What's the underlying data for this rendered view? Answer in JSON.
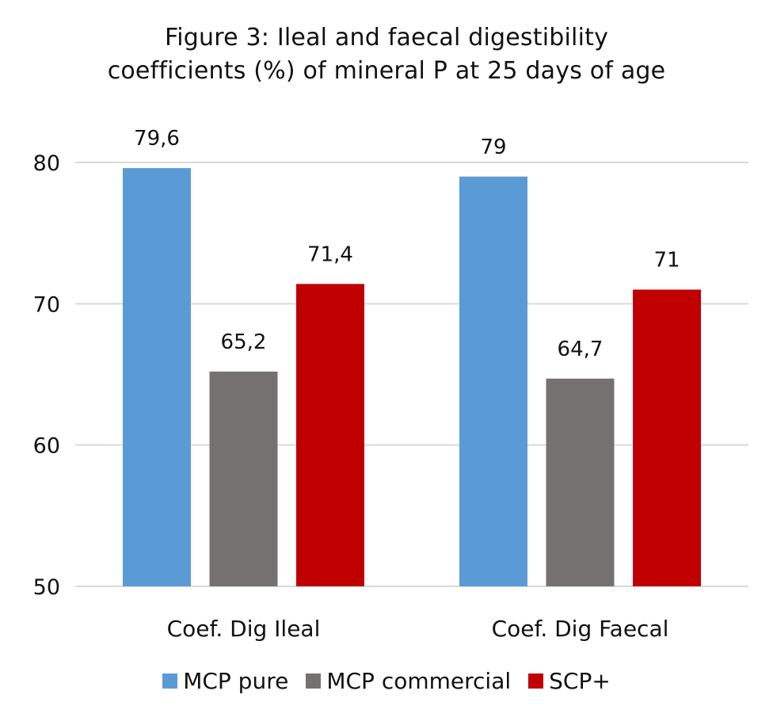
{
  "chart_data": {
    "type": "bar",
    "title": "Figure 3: Ileal and faecal digestibility coefficients (%) of mineral P at 25 days of age",
    "title_lines": [
      "Figure 3: Ileal and faecal digestibility",
      "coefficients (%) of mineral P at 25 days of age"
    ],
    "categories": [
      "Coef. Dig Ileal",
      "Coef. Dig Faecal"
    ],
    "series": [
      {
        "name": "MCP pure",
        "color": "#5B9BD5",
        "values": [
          79.6,
          79
        ],
        "labels": [
          "79,6",
          "79"
        ]
      },
      {
        "name": "MCP commercial",
        "color": "#767171",
        "values": [
          65.2,
          64.7
        ],
        "labels": [
          "65,2",
          "64,7"
        ]
      },
      {
        "name": "SCP+",
        "color": "#C00000",
        "values": [
          71.4,
          71
        ],
        "labels": [
          "71,4",
          "71"
        ]
      }
    ],
    "xlabel": "",
    "ylabel": "",
    "ylim": [
      50,
      80
    ],
    "yticks": [
      50,
      60,
      70,
      80
    ],
    "ytick_labels": [
      "50",
      "60",
      "70",
      "80"
    ],
    "grid": true,
    "gridline_color": "#D9D9D9",
    "legend_position": "bottom"
  }
}
